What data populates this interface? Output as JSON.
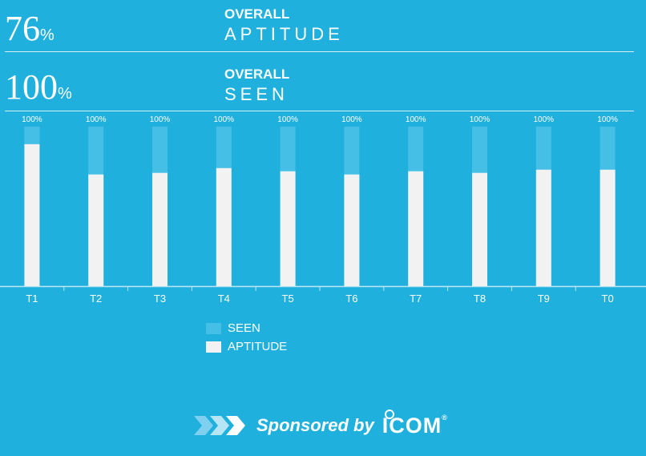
{
  "stats": [
    {
      "value": "76",
      "unit": "%",
      "kicker": "OVERALL",
      "word": "APTITUDE"
    },
    {
      "value": "100",
      "unit": "%",
      "kicker": "OVERALL",
      "word": "SEEN"
    }
  ],
  "chart_data": {
    "type": "bar",
    "categories": [
      "T1",
      "T2",
      "T3",
      "T4",
      "T5",
      "T6",
      "T7",
      "T8",
      "T9",
      "T0"
    ],
    "series": [
      {
        "name": "SEEN",
        "values": [
          100,
          100,
          100,
          100,
          100,
          100,
          100,
          100,
          100,
          100
        ],
        "color": "#45bfe6"
      },
      {
        "name": "APTITUDE",
        "values": [
          89,
          70,
          71,
          74,
          72,
          70,
          72,
          71,
          73,
          73
        ],
        "color": "#f2f2f2"
      }
    ],
    "data_labels": [
      "100%",
      "100%",
      "100%",
      "100%",
      "100%",
      "100%",
      "100%",
      "100%",
      "100%",
      "100%"
    ],
    "ylim": [
      0,
      100
    ],
    "grid": false,
    "legend": "bottom"
  },
  "legend": [
    {
      "label": "SEEN",
      "color": "#45bfe6"
    },
    {
      "label": "APTITUDE",
      "color": "#f2f2f2"
    }
  ],
  "sponsor": {
    "text": "Sponsored by",
    "brand": "ICOM",
    "mark": "®"
  }
}
